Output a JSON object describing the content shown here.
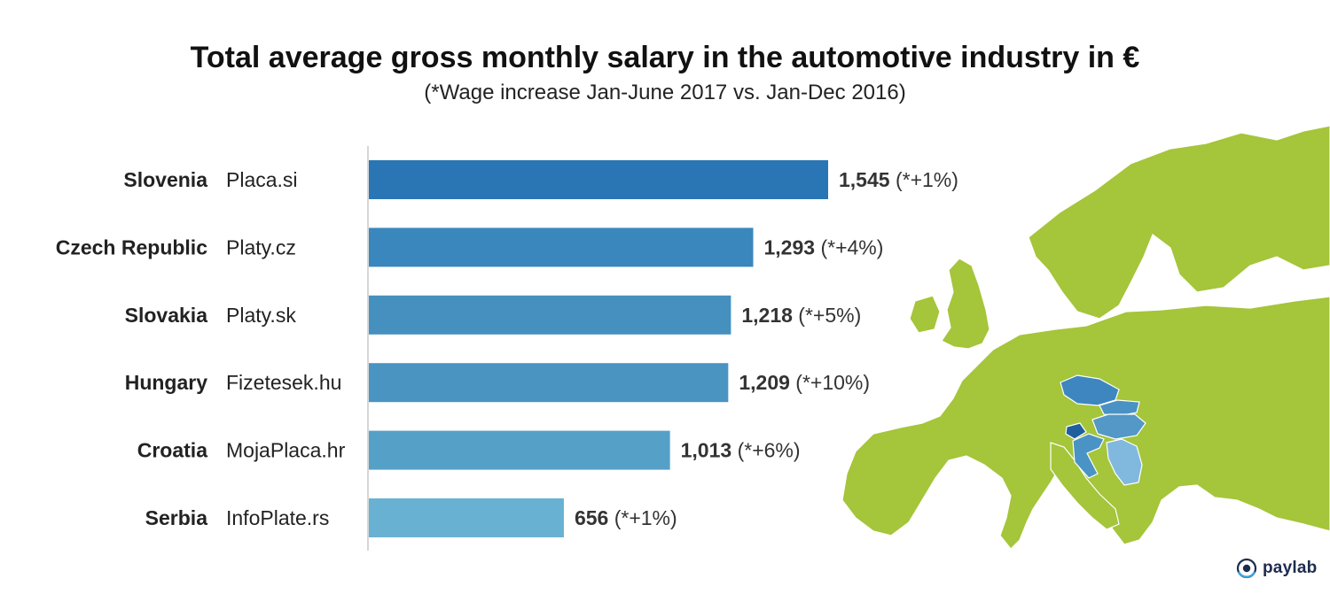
{
  "title": "Total average gross monthly salary in the automotive industry in €",
  "subtitle": "(*Wage increase Jan-June 2017 vs. Jan-Dec 2016)",
  "logo_text": "paylab",
  "colors": {
    "bars": [
      "#2a76b4",
      "#3987bc",
      "#4590bf",
      "#4a94c2",
      "#55a0c7",
      "#69b1d2"
    ],
    "map_land": "#a5c53a",
    "axis": "#c8c8c8"
  },
  "chart_data": {
    "type": "bar",
    "orientation": "horizontal",
    "title": "Total average gross monthly salary in the automotive industry in €",
    "subtitle": "(*Wage increase Jan-June 2017 vs. Jan-Dec 2016)",
    "categories": [
      "Slovenia",
      "Czech Republic",
      "Slovakia",
      "Hungary",
      "Croatia",
      "Serbia"
    ],
    "sources": [
      "Placa.si",
      "Platy.cz",
      "Platy.sk",
      "Fizetesek.hu",
      "MojaPlaca.hr",
      "InfoPlate.rs"
    ],
    "values": [
      1545,
      1293,
      1218,
      1209,
      1013,
      656
    ],
    "value_labels": [
      "1,545",
      "1,293",
      "1,218",
      "1,209",
      "1,013",
      "656"
    ],
    "increase_labels": [
      "(*+1%)",
      "(*+4%)",
      "(*+5%)",
      "(*+10%)",
      "(*+6%)",
      "(*+1%)"
    ],
    "xlim": [
      0,
      1545
    ],
    "grid": false,
    "legend": "none"
  }
}
